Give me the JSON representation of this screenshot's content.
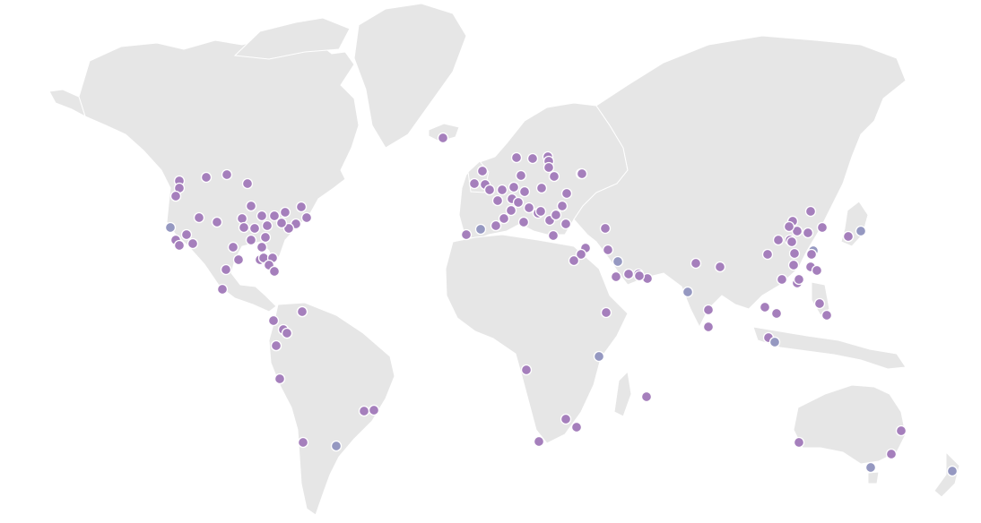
{
  "map": {
    "title": "",
    "colors": {
      "background": "#ffffff",
      "land": "#e6e6e6",
      "marker_primary": "#a57fbc",
      "marker_secondary": "#9598c1"
    },
    "markers": [
      {
        "id": "seattle",
        "kind": "primary"
      },
      {
        "id": "portland-a",
        "kind": "primary"
      },
      {
        "id": "portland-b",
        "kind": "primary"
      },
      {
        "id": "sf",
        "kind": "secondary"
      },
      {
        "id": "san-jose",
        "kind": "primary"
      },
      {
        "id": "los-angeles",
        "kind": "primary"
      },
      {
        "id": "san-diego",
        "kind": "primary"
      },
      {
        "id": "las-vegas",
        "kind": "primary"
      },
      {
        "id": "phoenix",
        "kind": "primary"
      },
      {
        "id": "salt-lake",
        "kind": "primary"
      },
      {
        "id": "denver",
        "kind": "primary"
      },
      {
        "id": "albuquerque",
        "kind": "primary"
      },
      {
        "id": "calgary",
        "kind": "primary"
      },
      {
        "id": "winnipeg",
        "kind": "primary"
      },
      {
        "id": "minneapolis",
        "kind": "primary"
      },
      {
        "id": "kansas-city",
        "kind": "primary"
      },
      {
        "id": "omaha",
        "kind": "primary"
      },
      {
        "id": "chicago",
        "kind": "primary"
      },
      {
        "id": "st-louis",
        "kind": "primary"
      },
      {
        "id": "indianapolis",
        "kind": "primary"
      },
      {
        "id": "detroit",
        "kind": "primary"
      },
      {
        "id": "toronto",
        "kind": "primary"
      },
      {
        "id": "montreal",
        "kind": "primary"
      },
      {
        "id": "boston",
        "kind": "primary"
      },
      {
        "id": "new-york",
        "kind": "primary"
      },
      {
        "id": "philadelphia",
        "kind": "primary"
      },
      {
        "id": "ashburn",
        "kind": "primary"
      },
      {
        "id": "columbus",
        "kind": "primary"
      },
      {
        "id": "nashville",
        "kind": "primary"
      },
      {
        "id": "memphis",
        "kind": "primary"
      },
      {
        "id": "oklahoma",
        "kind": "primary"
      },
      {
        "id": "dallas",
        "kind": "primary"
      },
      {
        "id": "atlanta",
        "kind": "primary"
      },
      {
        "id": "charlotte",
        "kind": "primary"
      },
      {
        "id": "houston",
        "kind": "primary"
      },
      {
        "id": "austin",
        "kind": "primary"
      },
      {
        "id": "san-antonio",
        "kind": "primary"
      },
      {
        "id": "new-orleans",
        "kind": "primary"
      },
      {
        "id": "jacksonville",
        "kind": "primary"
      },
      {
        "id": "tampa",
        "kind": "primary"
      },
      {
        "id": "miami",
        "kind": "primary"
      },
      {
        "id": "monterrey",
        "kind": "primary"
      },
      {
        "id": "mexico-city",
        "kind": "primary"
      },
      {
        "id": "guatemala",
        "kind": "primary"
      },
      {
        "id": "panama",
        "kind": "primary"
      },
      {
        "id": "bogota",
        "kind": "primary"
      },
      {
        "id": "medellin",
        "kind": "primary"
      },
      {
        "id": "caracas",
        "kind": "primary"
      },
      {
        "id": "quito",
        "kind": "primary"
      },
      {
        "id": "lima",
        "kind": "primary"
      },
      {
        "id": "sao-paulo",
        "kind": "primary"
      },
      {
        "id": "rio",
        "kind": "primary"
      },
      {
        "id": "santiago",
        "kind": "primary"
      },
      {
        "id": "buenos-aires",
        "kind": "secondary"
      },
      {
        "id": "reykjavik",
        "kind": "primary"
      },
      {
        "id": "dublin",
        "kind": "primary"
      },
      {
        "id": "manchester",
        "kind": "primary"
      },
      {
        "id": "london",
        "kind": "primary"
      },
      {
        "id": "lisbon",
        "kind": "primary"
      },
      {
        "id": "madrid",
        "kind": "secondary"
      },
      {
        "id": "barcelona",
        "kind": "primary"
      },
      {
        "id": "paris",
        "kind": "primary"
      },
      {
        "id": "brussels",
        "kind": "primary"
      },
      {
        "id": "amsterdam",
        "kind": "primary"
      },
      {
        "id": "frankfurt",
        "kind": "primary"
      },
      {
        "id": "zurich",
        "kind": "primary"
      },
      {
        "id": "milan",
        "kind": "primary"
      },
      {
        "id": "rome",
        "kind": "primary"
      },
      {
        "id": "marseille",
        "kind": "primary"
      },
      {
        "id": "hamburg",
        "kind": "primary"
      },
      {
        "id": "berlin",
        "kind": "primary"
      },
      {
        "id": "copenhagen",
        "kind": "primary"
      },
      {
        "id": "oslo",
        "kind": "primary"
      },
      {
        "id": "stockholm",
        "kind": "primary"
      },
      {
        "id": "helsinki",
        "kind": "primary"
      },
      {
        "id": "tallinn",
        "kind": "primary"
      },
      {
        "id": "riga",
        "kind": "primary"
      },
      {
        "id": "vilnius",
        "kind": "primary"
      },
      {
        "id": "warsaw",
        "kind": "primary"
      },
      {
        "id": "prague",
        "kind": "primary"
      },
      {
        "id": "vienna",
        "kind": "primary"
      },
      {
        "id": "budapest",
        "kind": "primary"
      },
      {
        "id": "zagreb",
        "kind": "primary"
      },
      {
        "id": "belgrade",
        "kind": "primary"
      },
      {
        "id": "bucharest",
        "kind": "primary"
      },
      {
        "id": "sofia",
        "kind": "primary"
      },
      {
        "id": "athens",
        "kind": "primary"
      },
      {
        "id": "kyiv",
        "kind": "primary"
      },
      {
        "id": "moscow",
        "kind": "primary"
      },
      {
        "id": "istanbul",
        "kind": "primary"
      },
      {
        "id": "tbilisi",
        "kind": "primary"
      },
      {
        "id": "tel-aviv",
        "kind": "primary"
      },
      {
        "id": "amman",
        "kind": "primary"
      },
      {
        "id": "cairo",
        "kind": "primary"
      },
      {
        "id": "baghdad",
        "kind": "primary"
      },
      {
        "id": "kuwait",
        "kind": "secondary"
      },
      {
        "id": "riyadh",
        "kind": "primary"
      },
      {
        "id": "bahrain",
        "kind": "primary"
      },
      {
        "id": "doha",
        "kind": "primary"
      },
      {
        "id": "dubai",
        "kind": "primary"
      },
      {
        "id": "muscat",
        "kind": "primary"
      },
      {
        "id": "djibouti",
        "kind": "primary"
      },
      {
        "id": "mombasa",
        "kind": "secondary"
      },
      {
        "id": "luanda",
        "kind": "primary"
      },
      {
        "id": "johannesburg",
        "kind": "primary"
      },
      {
        "id": "durban",
        "kind": "primary"
      },
      {
        "id": "cape-town",
        "kind": "primary"
      },
      {
        "id": "mauritius",
        "kind": "primary"
      },
      {
        "id": "karachi",
        "kind": "primary"
      },
      {
        "id": "delhi",
        "kind": "primary"
      },
      {
        "id": "kathmandu",
        "kind": "primary"
      },
      {
        "id": "mumbai",
        "kind": "secondary"
      },
      {
        "id": "chennai",
        "kind": "primary"
      },
      {
        "id": "colombo",
        "kind": "primary"
      },
      {
        "id": "bangkok",
        "kind": "primary"
      },
      {
        "id": "kuala-lumpur",
        "kind": "primary"
      },
      {
        "id": "hanoi",
        "kind": "primary"
      },
      {
        "id": "singapore",
        "kind": "secondary"
      },
      {
        "id": "kunming",
        "kind": "primary"
      },
      {
        "id": "chengdu",
        "kind": "primary"
      },
      {
        "id": "chongqing",
        "kind": "primary"
      },
      {
        "id": "xian",
        "kind": "primary"
      },
      {
        "id": "beijing",
        "kind": "primary"
      },
      {
        "id": "tianjin",
        "kind": "primary"
      },
      {
        "id": "shenyang",
        "kind": "primary"
      },
      {
        "id": "qingdao",
        "kind": "primary"
      },
      {
        "id": "zhengzhou",
        "kind": "primary"
      },
      {
        "id": "wuhan",
        "kind": "primary"
      },
      {
        "id": "nanjing",
        "kind": "secondary"
      },
      {
        "id": "shanghai",
        "kind": "primary"
      },
      {
        "id": "hangzhou",
        "kind": "primary"
      },
      {
        "id": "fuzhou",
        "kind": "primary"
      },
      {
        "id": "guangzhou",
        "kind": "primary"
      },
      {
        "id": "shenzhen",
        "kind": "primary"
      },
      {
        "id": "hong-kong",
        "kind": "primary"
      },
      {
        "id": "nanning",
        "kind": "primary"
      },
      {
        "id": "taipei",
        "kind": "primary"
      },
      {
        "id": "manila",
        "kind": "primary"
      },
      {
        "id": "cebu",
        "kind": "primary"
      },
      {
        "id": "seoul",
        "kind": "primary"
      },
      {
        "id": "busan",
        "kind": "primary"
      },
      {
        "id": "osaka",
        "kind": "primary"
      },
      {
        "id": "tokyo",
        "kind": "secondary"
      },
      {
        "id": "perth",
        "kind": "primary"
      },
      {
        "id": "brisbane",
        "kind": "primary"
      },
      {
        "id": "sydney",
        "kind": "primary"
      },
      {
        "id": "melbourne",
        "kind": "secondary"
      },
      {
        "id": "auckland",
        "kind": "secondary"
      }
    ]
  }
}
